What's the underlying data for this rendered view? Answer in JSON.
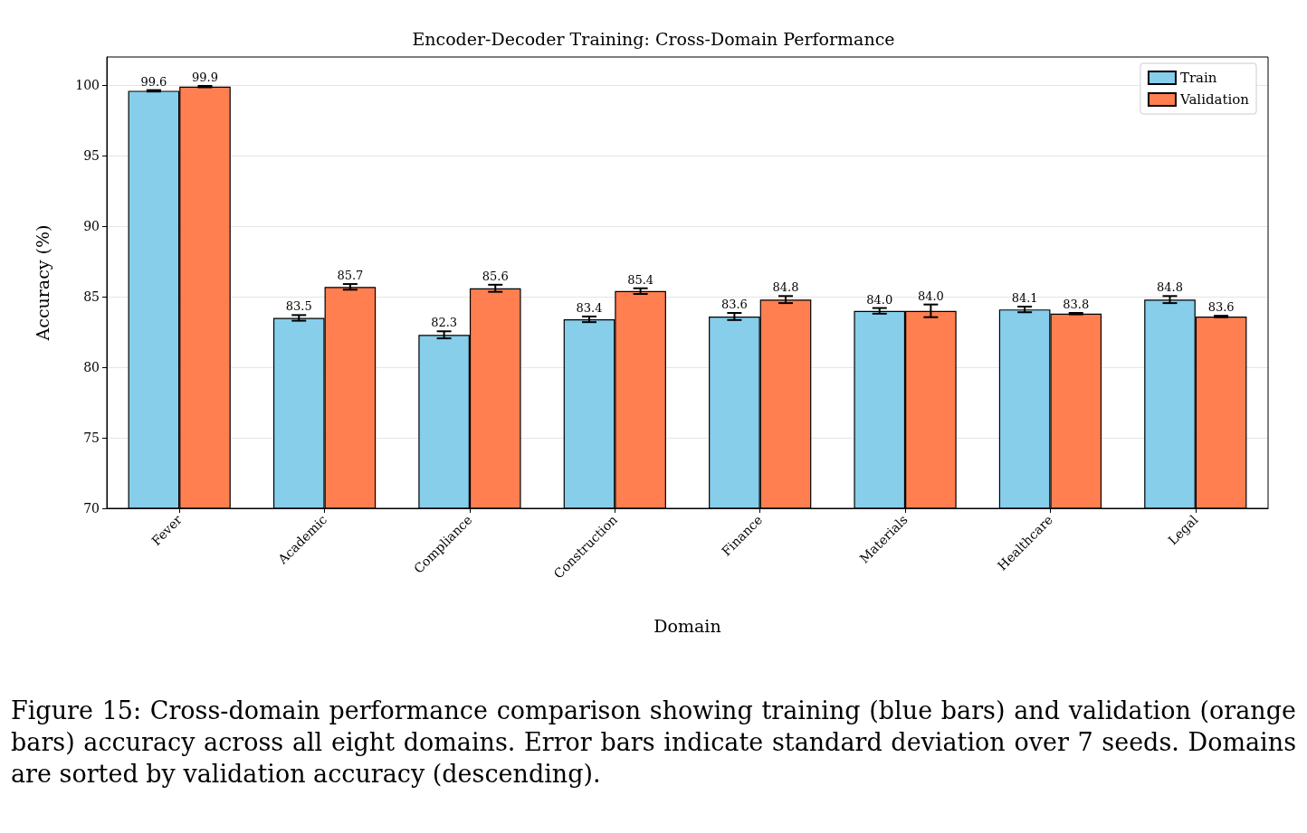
{
  "chart_data": {
    "type": "bar",
    "title": "Encoder-Decoder Training: Cross-Domain Performance",
    "xlabel": "Domain",
    "ylabel": "Accuracy (%)",
    "categories": [
      "Fever",
      "Academic",
      "Compliance",
      "Construction",
      "Finance",
      "Materials",
      "Healthcare",
      "Legal"
    ],
    "series": [
      {
        "name": "Train",
        "color": "#87ceeb",
        "values": [
          99.6,
          83.5,
          82.3,
          83.4,
          83.6,
          84.0,
          84.1,
          84.8
        ],
        "value_labels": [
          "99.6",
          "83.5",
          "82.3",
          "83.4",
          "83.6",
          "84.0",
          "84.1",
          "84.8"
        ],
        "errors": [
          0.05,
          0.2,
          0.25,
          0.2,
          0.25,
          0.2,
          0.2,
          0.25
        ]
      },
      {
        "name": "Validation",
        "color": "#ff7f50",
        "values": [
          99.9,
          85.7,
          85.6,
          85.4,
          84.8,
          84.0,
          83.8,
          83.6
        ],
        "value_labels": [
          "99.9",
          "85.7",
          "85.6",
          "85.4",
          "84.8",
          "84.0",
          "83.8",
          "83.6"
        ],
        "errors": [
          0.05,
          0.2,
          0.25,
          0.2,
          0.25,
          0.45,
          0.05,
          0.05
        ]
      }
    ],
    "ylim": [
      70,
      102
    ],
    "yticks": [
      70,
      75,
      80,
      85,
      90,
      95,
      100
    ],
    "grid": "y",
    "legend": "top right",
    "annotations": [
      "Figure 15: Cross-domain performance comparison showing training (blue bars) and validation (orange bars) accuracy across all eight domains. Error bars indicate standard deviation over 7 seeds. Domains are sorted by validation accuracy (descending)."
    ]
  }
}
